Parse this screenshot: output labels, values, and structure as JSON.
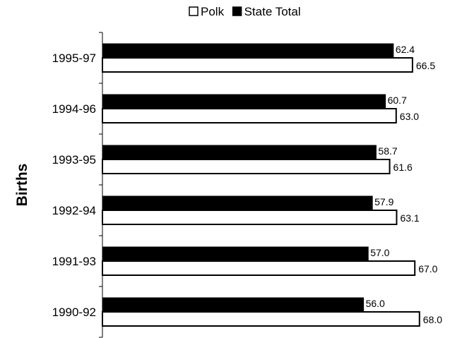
{
  "chart_data": {
    "type": "bar",
    "orientation": "horizontal",
    "title": "",
    "xlabel": "",
    "ylabel": "Births",
    "categories": [
      "1995-97",
      "1994-96",
      "1993-95",
      "1992-94",
      "1991-93",
      "1990-92"
    ],
    "series": [
      {
        "name": "State Total",
        "values": [
          62.4,
          60.7,
          58.7,
          57.9,
          57.0,
          56.0
        ],
        "color": "#000000"
      },
      {
        "name": "Polk",
        "values": [
          66.5,
          63.0,
          61.6,
          63.1,
          67.0,
          68.0
        ],
        "color": "#ffffff"
      }
    ],
    "legend": {
      "placement": "top-center",
      "order": [
        "Polk",
        "State Total"
      ]
    },
    "xlim": [
      0,
      70
    ],
    "grid": false,
    "value_labels": true
  }
}
